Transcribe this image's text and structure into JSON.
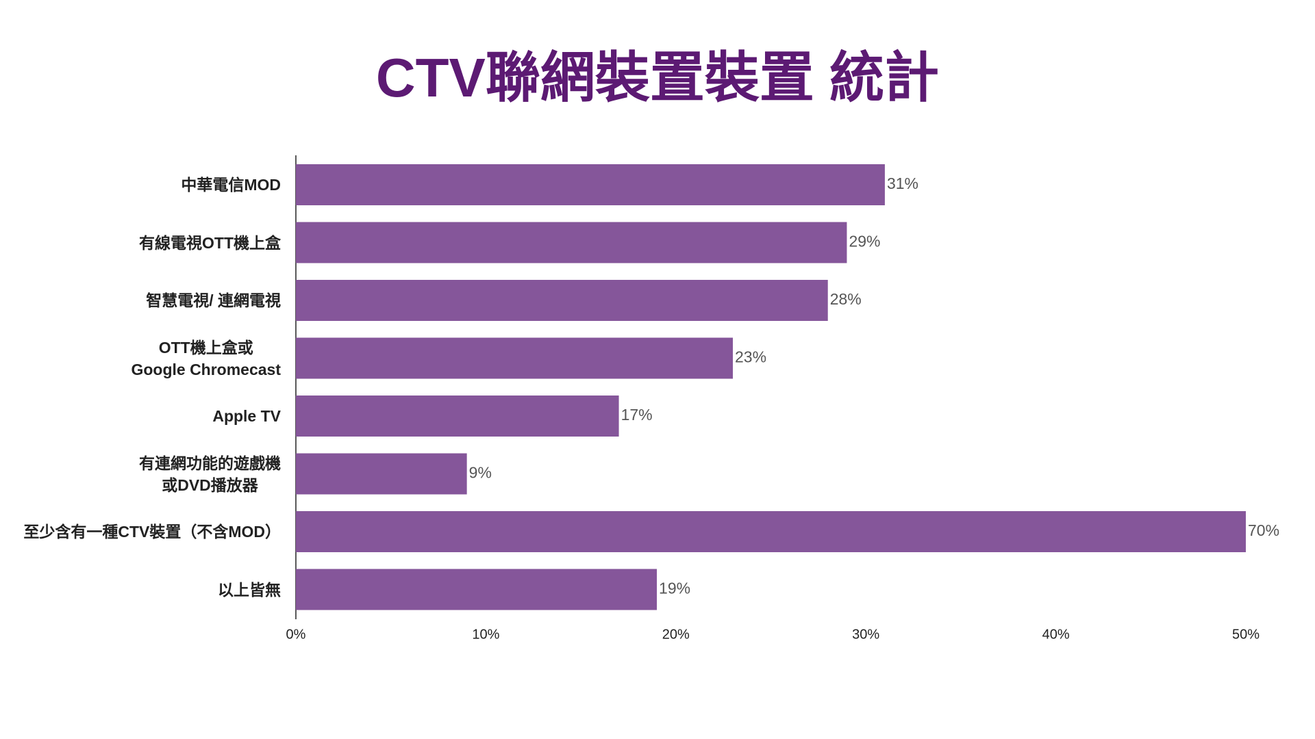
{
  "chart_data": {
    "type": "hbar",
    "title": "CTV聯網裝置裝置 統計",
    "categories": [
      "中華電信MOD",
      "有線電視OTT機上盒",
      "智慧電視/ 連網電視",
      "OTT機上盒或\nGoogle Chromecast",
      "Apple TV",
      "有連網功能的遊戲機\n或DVD播放器",
      "至少含有一種CTV裝置（不含MOD）",
      "以上皆無"
    ],
    "values": [
      31,
      29,
      28,
      23,
      17,
      9,
      70,
      19
    ],
    "value_labels": [
      "31%",
      "29%",
      "28%",
      "23%",
      "17%",
      "9%",
      "70%",
      "19%"
    ],
    "color": "#85569a",
    "xlim": [
      0,
      50
    ],
    "xticks": [
      {
        "value": 0,
        "label": "0%"
      },
      {
        "value": 10,
        "label": "10%"
      },
      {
        "value": 20,
        "label": "20%"
      },
      {
        "value": 30,
        "label": "30%"
      },
      {
        "value": 40,
        "label": "40%"
      },
      {
        "value": 50,
        "label": "50%"
      }
    ],
    "grid": false
  }
}
